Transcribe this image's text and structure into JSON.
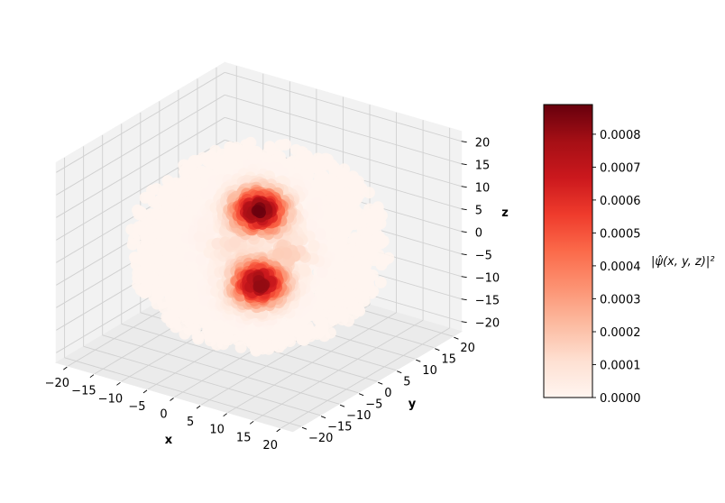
{
  "chart_data": {
    "type": "scatter3d",
    "title": "",
    "xlabel": "x",
    "ylabel": "y",
    "zlabel": "z",
    "xlim": [
      -20,
      20
    ],
    "ylim": [
      -20,
      20
    ],
    "zlim": [
      -20,
      20
    ],
    "xticks": [
      "−20",
      "−15",
      "−10",
      "−5",
      "0",
      "5",
      "10",
      "15",
      "20"
    ],
    "yticks": [
      "−20",
      "−15",
      "−10",
      "−5",
      "0",
      "5",
      "10",
      "15",
      "20"
    ],
    "zticks": [
      "−20",
      "−15",
      "−10",
      "−5",
      "0",
      "5",
      "10",
      "15",
      "20"
    ],
    "grid": true,
    "colormap": "Reds",
    "colorbar": {
      "label": "|ψ̂(x, y, z)|²",
      "min": 0.0,
      "max": 0.00089,
      "ticks": [
        "0.0000",
        "0.0001",
        "0.0002",
        "0.0003",
        "0.0004",
        "0.0005",
        "0.0006",
        "0.0007",
        "0.0008"
      ]
    },
    "lobes": [
      {
        "x": 0,
        "y": 0,
        "z": 8,
        "peak": 0.00089
      },
      {
        "x": 0,
        "y": 0,
        "z": -8,
        "peak": 0.00085
      },
      {
        "x": 5,
        "y": 0,
        "z": 0,
        "peak": 0.00018
      },
      {
        "x": -5,
        "y": 0,
        "z": 0,
        "peak": 0.00012
      }
    ],
    "domain_radius": 20
  }
}
